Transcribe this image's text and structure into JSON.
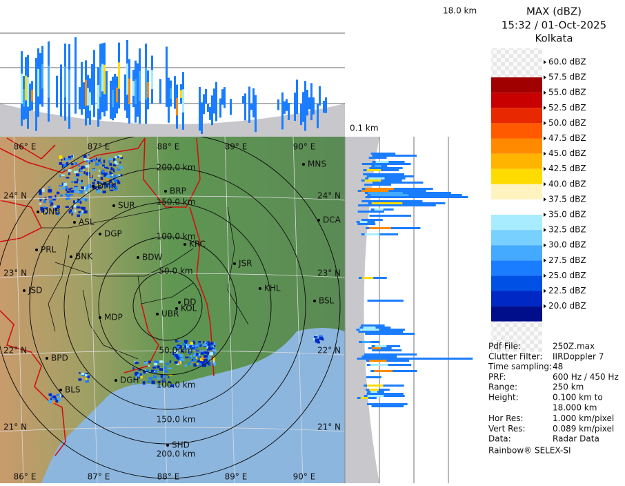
{
  "header": {
    "title": "MAX (dBZ)",
    "time": "15:32 / 01-Oct-2025",
    "location": "Kolkata"
  },
  "top_panel": {
    "max_height": "18.0 km"
  },
  "side_panel": {
    "min_height": "0.1 km"
  },
  "legend": {
    "labels": [
      "60.0 dBZ",
      "57.5 dBZ",
      "55.0 dBZ",
      "52.5 dBZ",
      "50.0 dBZ",
      "47.5 dBZ",
      "45.0 dBZ",
      "42.5 dBZ",
      "40.0 dBZ",
      "37.5 dBZ",
      "35.0 dBZ",
      "32.5 dBZ",
      "30.0 dBZ",
      "27.5 dBZ",
      "25.0 dBZ",
      "22.5 dBZ",
      "20.0 dBZ"
    ],
    "colors": [
      "#f4f4f4",
      "#a00000",
      "#c80000",
      "#e82800",
      "#ff5a00",
      "#ff8a00",
      "#ffb400",
      "#ffdc00",
      "#fff4c0",
      "#ffffff",
      "#a8ecff",
      "#78d0ff",
      "#44aaff",
      "#1a7cff",
      "#0050e6",
      "#0028c4",
      "#000e8c"
    ]
  },
  "map": {
    "lon_labels": [
      "86° E",
      "87° E",
      "88° E",
      "89° E",
      "90° E"
    ],
    "lat_labels": [
      "24° N",
      "23° N",
      "22° N",
      "21° N"
    ],
    "ring_labels": [
      "50.0 km",
      "100.0 km",
      "150.0 km",
      "200.0 km"
    ],
    "cities": [
      "MNS",
      "BRP",
      "DMK",
      "SUR",
      "DNB",
      "ASL",
      "DGP",
      "KRC",
      "PRL",
      "BNK",
      "BDW",
      "JSR",
      "DCA",
      "KHL",
      "JSD",
      "DD",
      "KOL",
      "UBR",
      "MDP",
      "BSL",
      "BPD",
      "DGH",
      "BLS",
      "SHD"
    ]
  },
  "info": {
    "rows": [
      [
        "Pdf File:",
        "250Z.max"
      ],
      [
        "Clutter Filter:",
        "IIRDoppler 7"
      ],
      [
        "Time sampling:",
        "48"
      ],
      [
        "PRF:",
        "600 Hz / 450 Hz"
      ],
      [
        "Range:",
        "250 km"
      ],
      [
        "Height:",
        "0.100 km to"
      ],
      [
        "",
        "18.000 km"
      ],
      [
        "Hor Res:",
        "1.000 km/pixel"
      ],
      [
        "Vert Res:",
        "0.089 km/pixel"
      ],
      [
        "Data:",
        "Radar Data"
      ]
    ],
    "footer": "Rainbow® SELEX-SI"
  }
}
